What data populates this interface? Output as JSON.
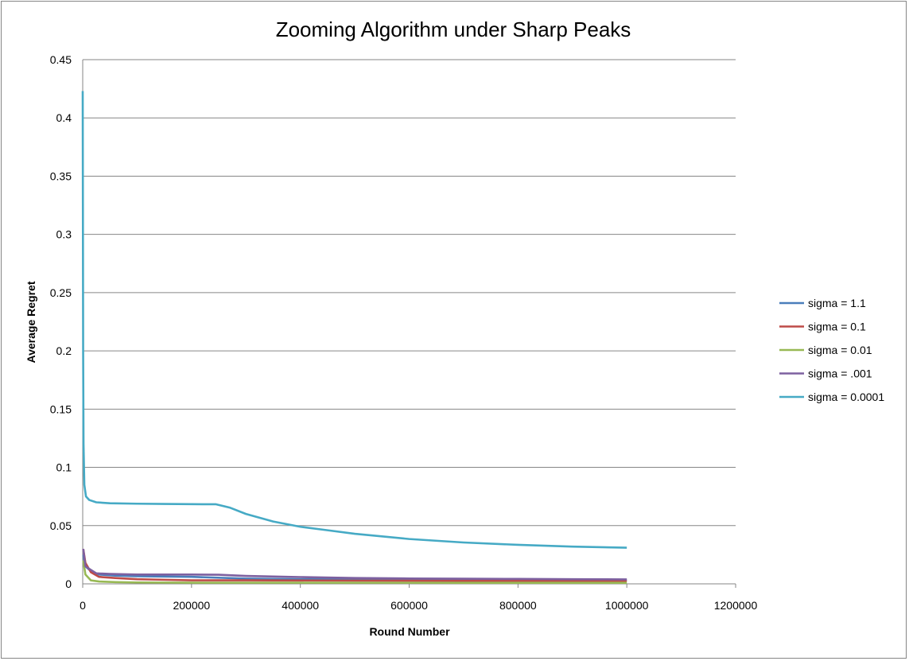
{
  "chart_data": {
    "type": "line",
    "title": "Zooming Algorithm under Sharp Peaks",
    "xlabel": "Round Number",
    "ylabel": "Average Regret",
    "xlim": [
      0,
      1200000
    ],
    "ylim": [
      0,
      0.45
    ],
    "x_ticks": [
      "0",
      "200000",
      "400000",
      "600000",
      "800000",
      "1000000",
      "1200000"
    ],
    "y_ticks": [
      "0",
      "0.05",
      "0.1",
      "0.15",
      "0.2",
      "0.25",
      "0.3",
      "0.35",
      "0.4",
      "0.45"
    ],
    "grid": "horizontal",
    "legend_position": "right",
    "series": [
      {
        "name": "sigma = 1.1",
        "color": "#4a7ebb",
        "points": [
          [
            1000,
            0.025
          ],
          [
            5000,
            0.015
          ],
          [
            15000,
            0.011
          ],
          [
            30000,
            0.008
          ],
          [
            60000,
            0.007
          ],
          [
            100000,
            0.0065
          ],
          [
            200000,
            0.006
          ],
          [
            300000,
            0.0045
          ],
          [
            400000,
            0.004
          ],
          [
            600000,
            0.0035
          ],
          [
            800000,
            0.0032
          ],
          [
            1000000,
            0.003
          ]
        ]
      },
      {
        "name": "sigma = 0.1",
        "color": "#be4b48",
        "points": [
          [
            1000,
            0.03
          ],
          [
            5000,
            0.018
          ],
          [
            15000,
            0.01
          ],
          [
            30000,
            0.006
          ],
          [
            60000,
            0.005
          ],
          [
            100000,
            0.004
          ],
          [
            150000,
            0.0035
          ],
          [
            200000,
            0.003
          ],
          [
            300000,
            0.003
          ],
          [
            500000,
            0.0028
          ],
          [
            700000,
            0.0026
          ],
          [
            1000000,
            0.0025
          ]
        ]
      },
      {
        "name": "sigma = 0.01",
        "color": "#98b954",
        "points": [
          [
            1000,
            0.02
          ],
          [
            5000,
            0.008
          ],
          [
            15000,
            0.003
          ],
          [
            30000,
            0.002
          ],
          [
            60000,
            0.0015
          ],
          [
            100000,
            0.0012
          ],
          [
            200000,
            0.001
          ],
          [
            400000,
            0.001
          ],
          [
            700000,
            0.0009
          ],
          [
            1000000,
            0.0009
          ]
        ]
      },
      {
        "name": "sigma = .001",
        "color": "#7d60a0",
        "points": [
          [
            1000,
            0.03
          ],
          [
            5000,
            0.015
          ],
          [
            15000,
            0.012
          ],
          [
            25000,
            0.009
          ],
          [
            50000,
            0.0085
          ],
          [
            100000,
            0.008
          ],
          [
            200000,
            0.008
          ],
          [
            250000,
            0.0078
          ],
          [
            300000,
            0.0068
          ],
          [
            400000,
            0.0058
          ],
          [
            500000,
            0.005
          ],
          [
            600000,
            0.0046
          ],
          [
            700000,
            0.0044
          ],
          [
            800000,
            0.0042
          ],
          [
            900000,
            0.004
          ],
          [
            1000000,
            0.0038
          ]
        ]
      },
      {
        "name": "sigma = 0.0001",
        "color": "#46aac5",
        "points": [
          [
            0,
            0.423
          ],
          [
            800,
            0.2
          ],
          [
            1500,
            0.12
          ],
          [
            3000,
            0.085
          ],
          [
            6000,
            0.075
          ],
          [
            12000,
            0.072
          ],
          [
            25000,
            0.07
          ],
          [
            50000,
            0.0692
          ],
          [
            100000,
            0.0688
          ],
          [
            150000,
            0.0686
          ],
          [
            200000,
            0.0684
          ],
          [
            245000,
            0.0683
          ],
          [
            270000,
            0.0655
          ],
          [
            300000,
            0.06
          ],
          [
            350000,
            0.0535
          ],
          [
            400000,
            0.049
          ],
          [
            450000,
            0.046
          ],
          [
            500000,
            0.043
          ],
          [
            600000,
            0.0385
          ],
          [
            700000,
            0.0355
          ],
          [
            800000,
            0.0335
          ],
          [
            900000,
            0.032
          ],
          [
            1000000,
            0.031
          ]
        ]
      }
    ]
  }
}
